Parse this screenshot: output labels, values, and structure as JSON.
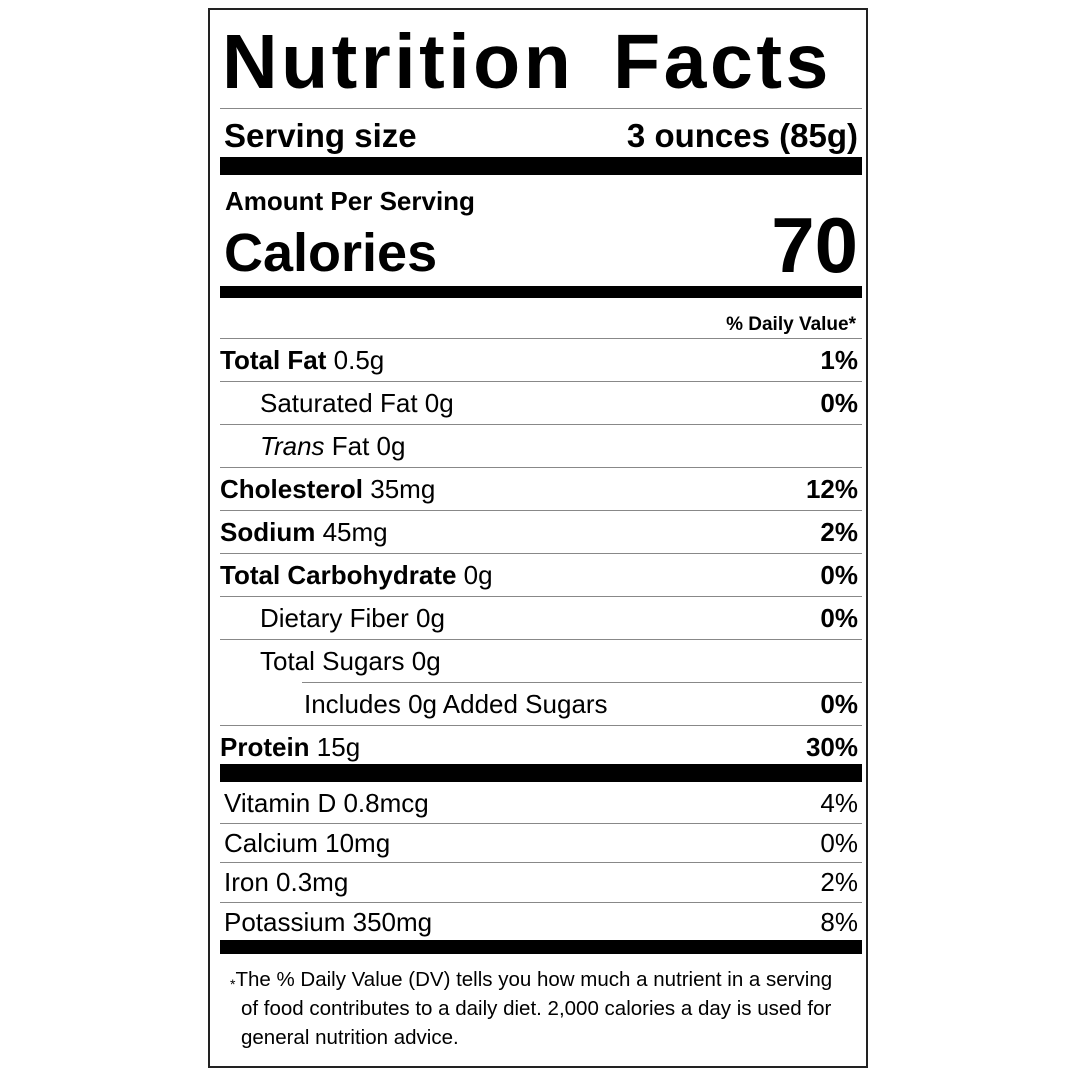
{
  "title": "Nutrition Facts",
  "serving": {
    "label": "Serving size",
    "value": "3 ounces (85g)"
  },
  "amount_per_serving": "Amount Per Serving",
  "calories": {
    "label": "Calories",
    "value": "70"
  },
  "dv_header": "% Daily Value*",
  "nutrients": [
    {
      "bold": "Total Fat",
      "amount": " 0.5g",
      "dv": "1%",
      "indent": 0
    },
    {
      "bold": "",
      "amount": "Saturated Fat 0g",
      "dv": "0%",
      "indent": 1
    },
    {
      "italic": "Trans",
      "amount": " Fat 0g",
      "dv": "",
      "indent": 1
    },
    {
      "bold": "Cholesterol",
      "amount": " 35mg",
      "dv": "12%",
      "indent": 0
    },
    {
      "bold": "Sodium",
      "amount": " 45mg",
      "dv": "2%",
      "indent": 0
    },
    {
      "bold": "Total Carbohydrate",
      "amount": " 0g",
      "dv": "0%",
      "indent": 0
    },
    {
      "bold": "",
      "amount": "Dietary Fiber 0g",
      "dv": "0%",
      "indent": 1
    },
    {
      "bold": "",
      "amount": "Total Sugars 0g",
      "dv": "",
      "indent": 1
    },
    {
      "bold": "",
      "amount": "Includes 0g Added Sugars",
      "dv": "0%",
      "indent": 2
    },
    {
      "bold": "Protein",
      "amount": " 15g",
      "dv": "30%",
      "indent": 0
    }
  ],
  "vitamins": [
    {
      "label": "Vitamin D 0.8mcg",
      "dv": "4%"
    },
    {
      "label": "Calcium 10mg",
      "dv": "0%"
    },
    {
      "label": "Iron 0.3mg",
      "dv": "2%"
    },
    {
      "label": "Potassium 350mg",
      "dv": "8%"
    }
  ],
  "footnote": {
    "star": "*",
    "text": "The % Daily Value (DV) tells you how much a nutrient in a serving of food contributes to a daily diet. 2,000 calories a day is used for general nutrition advice."
  }
}
